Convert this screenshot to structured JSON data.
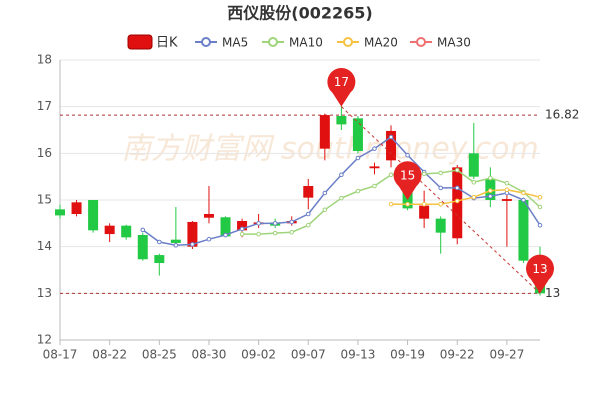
{
  "chart_data": {
    "type": "candlestick",
    "title": "西仪股份(002265)",
    "watermark": "南方财富网 southmoney.com",
    "categories": [
      "08-17",
      null,
      null,
      "08-22",
      null,
      null,
      "08-25",
      null,
      null,
      "08-30",
      null,
      null,
      "09-02",
      null,
      null,
      "09-07",
      null,
      null,
      "09-13",
      null,
      null,
      "09-19",
      null,
      null,
      "09-22",
      null,
      null,
      "09-27",
      null,
      null
    ],
    "candles": {
      "name": "日K",
      "up_color": "#e01010",
      "down_color": "#22c944",
      "open": [
        14.8,
        14.7,
        15.0,
        14.27,
        14.45,
        14.25,
        13.82,
        14.15,
        14.0,
        14.62,
        14.63,
        14.35,
        14.48,
        14.52,
        14.5,
        15.05,
        16.1,
        16.8,
        16.75,
        15.68,
        15.85,
        15.3,
        14.6,
        14.6,
        14.18,
        16.0,
        15.45,
        14.98,
        15.0,
        13.6
      ],
      "high": [
        14.9,
        15.0,
        15.0,
        14.5,
        14.47,
        14.3,
        13.85,
        14.85,
        14.55,
        15.3,
        14.65,
        14.6,
        14.7,
        14.6,
        14.65,
        15.45,
        16.85,
        17.3,
        16.8,
        15.8,
        16.6,
        15.55,
        15.2,
        14.65,
        15.75,
        16.65,
        15.7,
        15.2,
        15.05,
        14.0
      ],
      "low": [
        14.6,
        14.65,
        14.3,
        14.1,
        14.15,
        13.7,
        13.38,
        14.05,
        13.95,
        14.5,
        14.2,
        14.2,
        14.4,
        14.4,
        14.45,
        14.8,
        15.85,
        16.5,
        16.0,
        15.55,
        15.7,
        14.78,
        14.4,
        13.85,
        14.05,
        15.45,
        14.85,
        14.0,
        13.65,
        12.95
      ],
      "close": [
        14.67,
        14.95,
        14.35,
        14.45,
        14.2,
        13.73,
        13.65,
        14.08,
        14.53,
        14.7,
        14.22,
        14.55,
        14.52,
        14.45,
        14.55,
        15.3,
        16.82,
        16.62,
        16.05,
        15.72,
        16.48,
        14.82,
        14.88,
        14.3,
        15.7,
        15.5,
        15.0,
        15.02,
        13.7,
        13.0
      ]
    },
    "series": [
      {
        "name": "MA5",
        "color": "#6b7fc8",
        "values": [
          null,
          null,
          null,
          null,
          null,
          14.36,
          14.1,
          14.03,
          14.05,
          14.16,
          14.25,
          14.38,
          14.5,
          14.5,
          14.53,
          14.7,
          15.15,
          15.54,
          15.9,
          16.1,
          16.35,
          15.96,
          15.6,
          15.26,
          15.26,
          15.04,
          15.08,
          15.15,
          15.0,
          14.46
        ]
      },
      {
        "name": "MA10",
        "color": "#9fd47a",
        "values": [
          null,
          null,
          null,
          null,
          null,
          null,
          null,
          null,
          null,
          null,
          null,
          14.27,
          14.27,
          14.29,
          14.31,
          14.46,
          14.79,
          15.04,
          15.19,
          15.3,
          15.54,
          15.6,
          15.56,
          15.58,
          15.64,
          15.38,
          15.47,
          15.36,
          15.17,
          14.85
        ]
      },
      {
        "name": "MA20",
        "color": "#f5c242",
        "values": [
          null,
          null,
          null,
          null,
          null,
          null,
          null,
          null,
          null,
          null,
          null,
          null,
          null,
          null,
          null,
          null,
          null,
          null,
          null,
          null,
          14.91,
          14.91,
          14.91,
          14.91,
          14.98,
          15.06,
          15.2,
          15.22,
          15.15,
          15.06
        ]
      },
      {
        "name": "MA30",
        "color": "#ef7070",
        "values": [
          null,
          null,
          null,
          null,
          null,
          null,
          null,
          null,
          null,
          null,
          null,
          null,
          null,
          null,
          null,
          null,
          null,
          null,
          null,
          null,
          null,
          null,
          null,
          null,
          null,
          null,
          null,
          null,
          null,
          null
        ]
      }
    ],
    "reference_lines": [
      16.82,
      13
    ],
    "annotations": [
      {
        "index": 17,
        "value": 17
      },
      {
        "index": 21,
        "value": 15
      },
      {
        "index": 29,
        "value": 13
      }
    ],
    "ylim": [
      12,
      18
    ],
    "yticks": [
      12,
      13,
      14,
      15,
      16,
      17,
      18
    ],
    "grid": true
  }
}
